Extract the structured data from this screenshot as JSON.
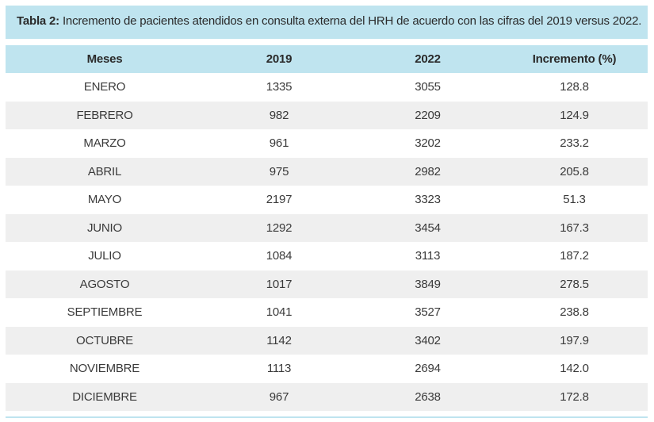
{
  "caption": {
    "label": "Tabla 2:",
    "text": "Incremento de pacientes atendidos en consulta externa del HRH de acuerdo con las cifras del 2019 versus 2022."
  },
  "columns": [
    "Meses",
    "2019",
    "2022",
    "Incremento (%)"
  ],
  "rows": [
    [
      "ENERO",
      "1335",
      "3055",
      "128.8"
    ],
    [
      "FEBRERO",
      "982",
      "2209",
      "124.9"
    ],
    [
      "MARZO",
      "961",
      "3202",
      "233.2"
    ],
    [
      "ABRIL",
      "975",
      "2982",
      "205.8"
    ],
    [
      "MAYO",
      "2197",
      "3323",
      "51.3"
    ],
    [
      "JUNIO",
      "1292",
      "3454",
      "167.3"
    ],
    [
      "JULIO",
      "1084",
      "3113",
      "187.2"
    ],
    [
      "AGOSTO",
      "1017",
      "3849",
      "278.5"
    ],
    [
      "SEPTIEMBRE",
      "1041",
      "3527",
      "238.8"
    ],
    [
      "OCTUBRE",
      "1142",
      "3402",
      "197.9"
    ],
    [
      "NOVIEMBRE",
      "1113",
      "2694",
      "142.0"
    ],
    [
      "DICIEMBRE",
      "967",
      "2638",
      "172.8"
    ]
  ],
  "colors": {
    "header_bg": "#bfe4ef",
    "row_shade": "#efefef"
  }
}
